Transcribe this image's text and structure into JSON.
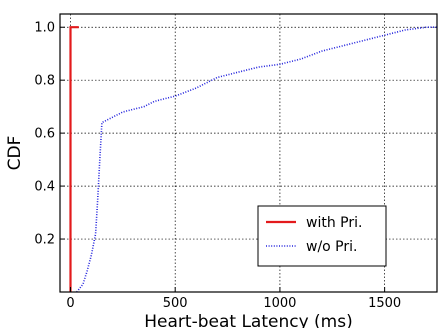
{
  "chart_data": {
    "type": "line",
    "xlabel": "Heart-beat Latency (ms)",
    "ylabel": "CDF",
    "xlim": [
      -50,
      1750
    ],
    "ylim": [
      0,
      1.05
    ],
    "x_ticks": [
      0,
      500,
      1000,
      1500
    ],
    "y_ticks": [
      0.2,
      0.4,
      0.6,
      0.8,
      1.0
    ],
    "grid": true,
    "legend_placement": "lower-right",
    "series": [
      {
        "name": "with Pri.",
        "color": "#e31a1c",
        "style": "solid",
        "points": [
          [
            0,
            0
          ],
          [
            0,
            1.0
          ],
          [
            40,
            1.0
          ]
        ]
      },
      {
        "name": "w/o Pri.",
        "color": "#2222dd",
        "style": "dotted",
        "points": [
          [
            30,
            0
          ],
          [
            60,
            0.03
          ],
          [
            80,
            0.08
          ],
          [
            100,
            0.14
          ],
          [
            120,
            0.22
          ],
          [
            130,
            0.35
          ],
          [
            140,
            0.5
          ],
          [
            150,
            0.64
          ],
          [
            200,
            0.66
          ],
          [
            250,
            0.68
          ],
          [
            300,
            0.69
          ],
          [
            350,
            0.7
          ],
          [
            400,
            0.72
          ],
          [
            450,
            0.73
          ],
          [
            500,
            0.74
          ],
          [
            600,
            0.77
          ],
          [
            700,
            0.81
          ],
          [
            800,
            0.83
          ],
          [
            900,
            0.85
          ],
          [
            1000,
            0.86
          ],
          [
            1100,
            0.88
          ],
          [
            1200,
            0.91
          ],
          [
            1300,
            0.93
          ],
          [
            1400,
            0.95
          ],
          [
            1500,
            0.97
          ],
          [
            1600,
            0.99
          ],
          [
            1700,
            1.0
          ],
          [
            1750,
            1.0
          ]
        ]
      }
    ]
  }
}
